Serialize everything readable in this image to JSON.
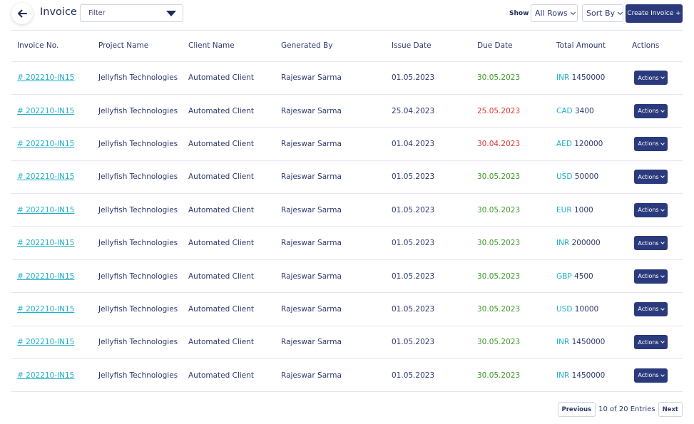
{
  "header": {
    "title": "Invoice",
    "filter_placeholder": "Filter",
    "show_label": "Show",
    "rows_value": "All Rows",
    "sort_label": "Sort By",
    "create_label": "Create Invoice +"
  },
  "table": {
    "columns": [
      "Invoice No.",
      "Project Name",
      "Client Name",
      "Generated By",
      "Issue Date",
      "Due Date",
      "Total Amount",
      "Actions"
    ],
    "rows": [
      {
        "invoice": "# 202210-IN15",
        "project": "Jellyfish Technologies",
        "client": "Automated Client",
        "by": "Rajeswar Sarma",
        "issue": "01.05.2023",
        "due": "30.05.2023",
        "due_status": "ok",
        "currency": "INR",
        "amount": "1450000",
        "action": "Actions"
      },
      {
        "invoice": "# 202210-IN15",
        "project": "Jellyfish Technologies",
        "client": "Automated Client",
        "by": "Rajeswar Sarma",
        "issue": "25.04.2023",
        "due": "25.05.2023",
        "due_status": "late",
        "currency": "CAD",
        "amount": "3400",
        "action": "Actions"
      },
      {
        "invoice": "# 202210-IN15",
        "project": "Jellyfish Technologies",
        "client": "Automated Client",
        "by": "Rajeswar Sarma",
        "issue": "01.04.2023",
        "due": "30.04.2023",
        "due_status": "late",
        "currency": "AED",
        "amount": "120000",
        "action": "Actions"
      },
      {
        "invoice": "# 202210-IN15",
        "project": "Jellyfish Technologies",
        "client": "Automated Client",
        "by": "Rajeswar Sarma",
        "issue": "01.05.2023",
        "due": "30.05.2023",
        "due_status": "ok",
        "currency": "USD",
        "amount": "50000",
        "action": "Actions"
      },
      {
        "invoice": "# 202210-IN15",
        "project": "Jellyfish Technologies",
        "client": "Automated Client",
        "by": "Rajeswar Sarma",
        "issue": "01.05.2023",
        "due": "30.05.2023",
        "due_status": "ok",
        "currency": "EUR",
        "amount": "1000",
        "action": "Actions"
      },
      {
        "invoice": "# 202210-IN15",
        "project": "Jellyfish Technologies",
        "client": "Automated Client",
        "by": "Rajeswar Sarma",
        "issue": "01.05.2023",
        "due": "30.05.2023",
        "due_status": "ok",
        "currency": "INR",
        "amount": "200000",
        "action": "Actions"
      },
      {
        "invoice": "# 202210-IN15",
        "project": "Jellyfish Technologies",
        "client": "Automated Client",
        "by": "Rajeswar Sarma",
        "issue": "01.05.2023",
        "due": "30.05.2023",
        "due_status": "ok",
        "currency": "GBP",
        "amount": "4500",
        "action": "Actions"
      },
      {
        "invoice": "# 202210-IN15",
        "project": "Jellyfish Technologies",
        "client": "Automated Client",
        "by": "Rajeswar Sarma",
        "issue": "01.05.2023",
        "due": "30.05.2023",
        "due_status": "ok",
        "currency": "USD",
        "amount": "10000",
        "action": "Actions"
      },
      {
        "invoice": "# 202210-IN15",
        "project": "Jellyfish Technologies",
        "client": "Automated Client",
        "by": "Rajeswar Sarma",
        "issue": "01.05.2023",
        "due": "30.05.2023",
        "due_status": "ok",
        "currency": "INR",
        "amount": "1450000",
        "action": "Actions"
      },
      {
        "invoice": "# 202210-IN15",
        "project": "Jellyfish Technologies",
        "client": "Automated Client",
        "by": "Rajeswar Sarma",
        "issue": "01.05.2023",
        "due": "30.05.2023",
        "due_status": "ok",
        "currency": "INR",
        "amount": "1450000",
        "action": "Actions"
      }
    ]
  },
  "pagination": {
    "previous_label": "Previous",
    "info": "10 of 20 Entries",
    "next_label": "Next"
  },
  "icons": {
    "back": "arrow-left-icon",
    "filter_caret": "caret-down-icon",
    "dropdown": "chevron-down-icon"
  },
  "colors": {
    "primary": "#2b3a7d",
    "link": "#1fb0c8",
    "due_ok": "#3e9a2a",
    "due_late": "#e03434"
  }
}
